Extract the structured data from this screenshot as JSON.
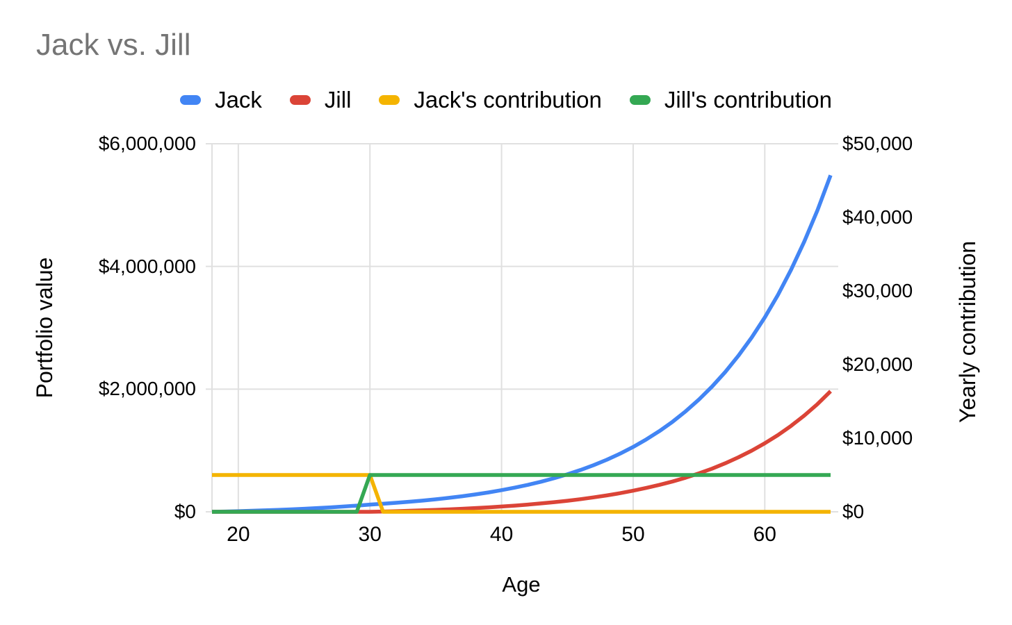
{
  "title": "Jack vs. Jill",
  "legend": {
    "items": [
      {
        "label": "Jack",
        "color": "#4285F4"
      },
      {
        "label": "Jill",
        "color": "#DB4437"
      },
      {
        "label": "Jack's contribution",
        "color": "#F4B400"
      },
      {
        "label": "Jill's contribution",
        "color": "#34A853"
      }
    ]
  },
  "axes": {
    "x": {
      "title": "Age",
      "tick_values": [
        20,
        30,
        40,
        50,
        60
      ],
      "tick_labels": [
        "20",
        "30",
        "40",
        "50",
        "60"
      ]
    },
    "y_left": {
      "title": "Portfolio value",
      "tick_values": [
        0,
        2000000,
        4000000,
        6000000
      ],
      "tick_labels": [
        "$0",
        "$2,000,000",
        "$4,000,000",
        "$6,000,000"
      ]
    },
    "y_right": {
      "title": "Yearly contribution",
      "tick_values": [
        0,
        10000,
        20000,
        30000,
        40000,
        50000
      ],
      "tick_labels": [
        "$0",
        "$10,000",
        "$20,000",
        "$30,000",
        "$40,000",
        "$50,000"
      ]
    }
  },
  "chart_data": {
    "type": "line",
    "title": "Jack vs. Jill",
    "xlabel": "Age",
    "ylabel_left": "Portfolio value",
    "ylabel_right": "Yearly contribution",
    "x_range": [
      18,
      65
    ],
    "y_left_range": [
      0,
      6000000
    ],
    "y_right_range": [
      0,
      50000
    ],
    "grid": {
      "horizontal_ticks": "y_left_only",
      "vertical_ticks": "x",
      "color": "#E0E0E0"
    },
    "legend_position": "top",
    "x": [
      18,
      19,
      20,
      21,
      22,
      23,
      24,
      25,
      26,
      27,
      28,
      29,
      30,
      31,
      32,
      33,
      34,
      35,
      36,
      37,
      38,
      39,
      40,
      41,
      42,
      43,
      44,
      45,
      46,
      47,
      48,
      49,
      50,
      51,
      52,
      53,
      54,
      55,
      56,
      57,
      58,
      59,
      60,
      61,
      62,
      63,
      64,
      65
    ],
    "series": [
      {
        "name": "Jack",
        "axis": "left",
        "color": "#4285F4",
        "values": [
          0,
          5000,
          10580,
          16807,
          23757,
          31513,
          40168,
          49828,
          60608,
          72638,
          86064,
          101047,
          117768,
          131429,
          146675,
          163689,
          182677,
          203868,
          227516,
          253908,
          283362,
          316232,
          352915,
          393853,
          439540,
          490527,
          547428,
          610930,
          681798,
          760886,
          849149,
          947650,
          1057577,
          1180256,
          1317166,
          1469957,
          1640472,
          1830767,
          2043136,
          2280140,
          2544636,
          2839814,
          3169232,
          3536863,
          3947139,
          4405007,
          4915988,
          5486243
        ]
      },
      {
        "name": "Jill",
        "axis": "left",
        "color": "#DB4437",
        "values": [
          0,
          0,
          0,
          0,
          0,
          0,
          0,
          0,
          0,
          0,
          0,
          0,
          0,
          5000,
          10580,
          16807,
          23757,
          31513,
          40168,
          49828,
          60608,
          72638,
          86064,
          101047,
          117768,
          136429,
          157255,
          180497,
          206435,
          235382,
          267686,
          303738,
          343972,
          388873,
          438982,
          494904,
          557313,
          626961,
          704689,
          791433,
          888239,
          996275,
          1116843,
          1251397,
          1401559,
          1569140,
          1756160,
          1964875
        ]
      },
      {
        "name": "Jack's contribution",
        "axis": "right",
        "color": "#F4B400",
        "values": [
          5000,
          5000,
          5000,
          5000,
          5000,
          5000,
          5000,
          5000,
          5000,
          5000,
          5000,
          5000,
          5000,
          0,
          0,
          0,
          0,
          0,
          0,
          0,
          0,
          0,
          0,
          0,
          0,
          0,
          0,
          0,
          0,
          0,
          0,
          0,
          0,
          0,
          0,
          0,
          0,
          0,
          0,
          0,
          0,
          0,
          0,
          0,
          0,
          0,
          0,
          0
        ]
      },
      {
        "name": "Jill's contribution",
        "axis": "right",
        "color": "#34A853",
        "values": [
          0,
          0,
          0,
          0,
          0,
          0,
          0,
          0,
          0,
          0,
          0,
          0,
          5000,
          5000,
          5000,
          5000,
          5000,
          5000,
          5000,
          5000,
          5000,
          5000,
          5000,
          5000,
          5000,
          5000,
          5000,
          5000,
          5000,
          5000,
          5000,
          5000,
          5000,
          5000,
          5000,
          5000,
          5000,
          5000,
          5000,
          5000,
          5000,
          5000,
          5000,
          5000,
          5000,
          5000,
          5000,
          5000
        ]
      }
    ]
  }
}
